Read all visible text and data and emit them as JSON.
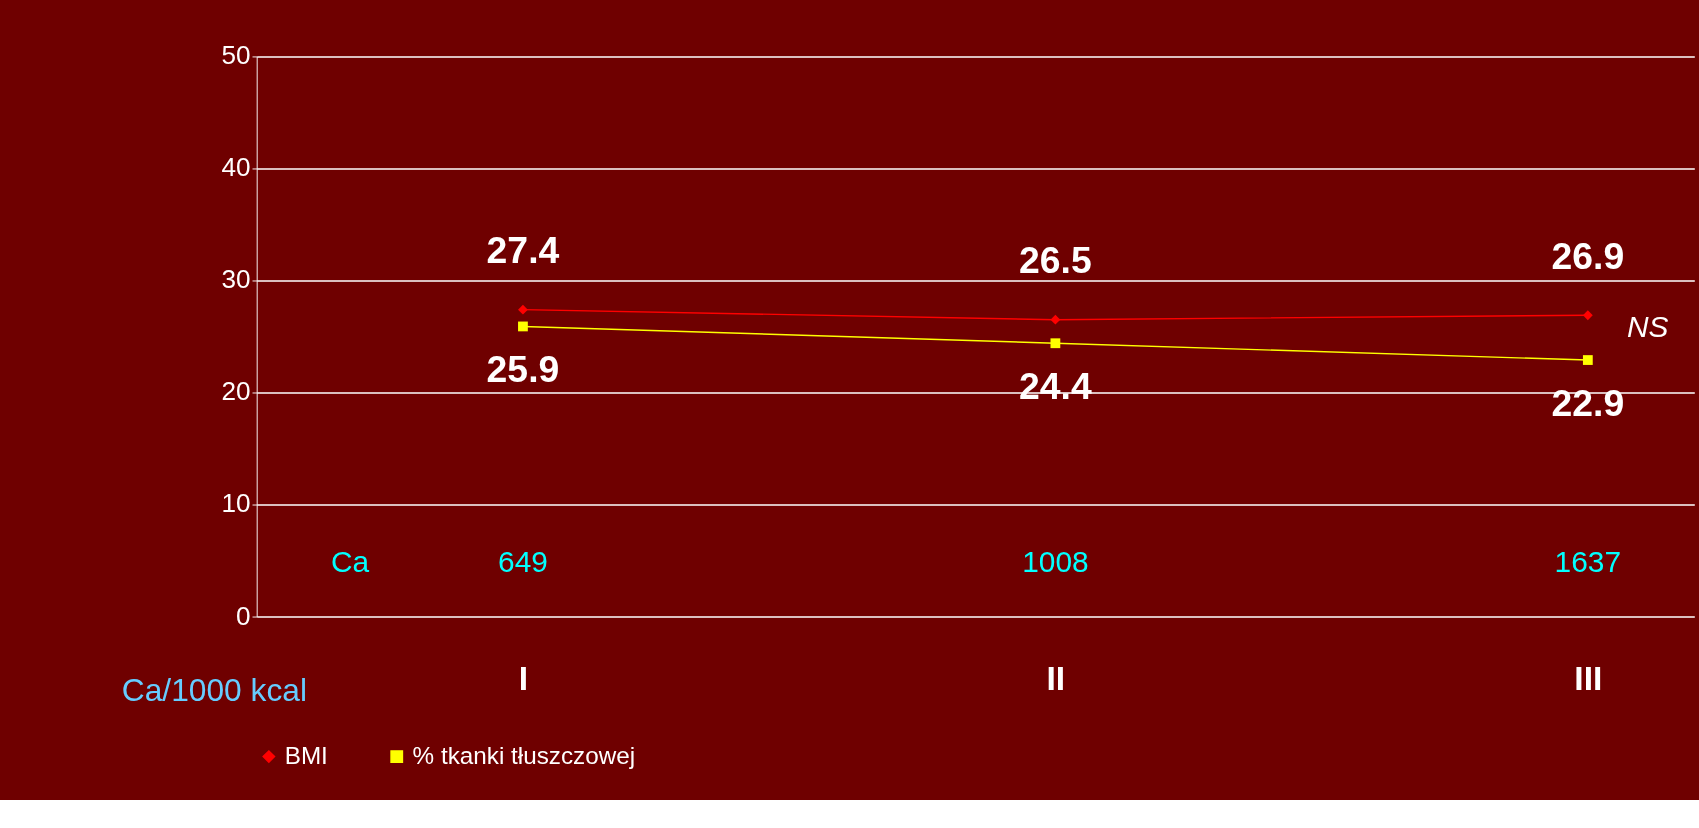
{
  "chart_data": {
    "type": "line",
    "xlabel": "Ca/1000 kcal",
    "categories": [
      "I",
      "II",
      "III"
    ],
    "series": [
      {
        "name": "BMI",
        "color": "#ff0000",
        "marker": "diamond",
        "values": [
          27.4,
          26.5,
          26.9
        ]
      },
      {
        "name": "% tkanki tłuszczowej",
        "color": "#ffff00",
        "marker": "square",
        "values": [
          25.9,
          24.4,
          22.9
        ]
      }
    ],
    "ylim": [
      0,
      50
    ],
    "yticks": [
      0,
      10,
      20,
      30,
      40,
      50
    ],
    "grid": "y",
    "legend": "bottom",
    "data_labels": true,
    "annotations": [
      "Ca",
      "NS",
      "649",
      "1008",
      "1637"
    ]
  }
}
